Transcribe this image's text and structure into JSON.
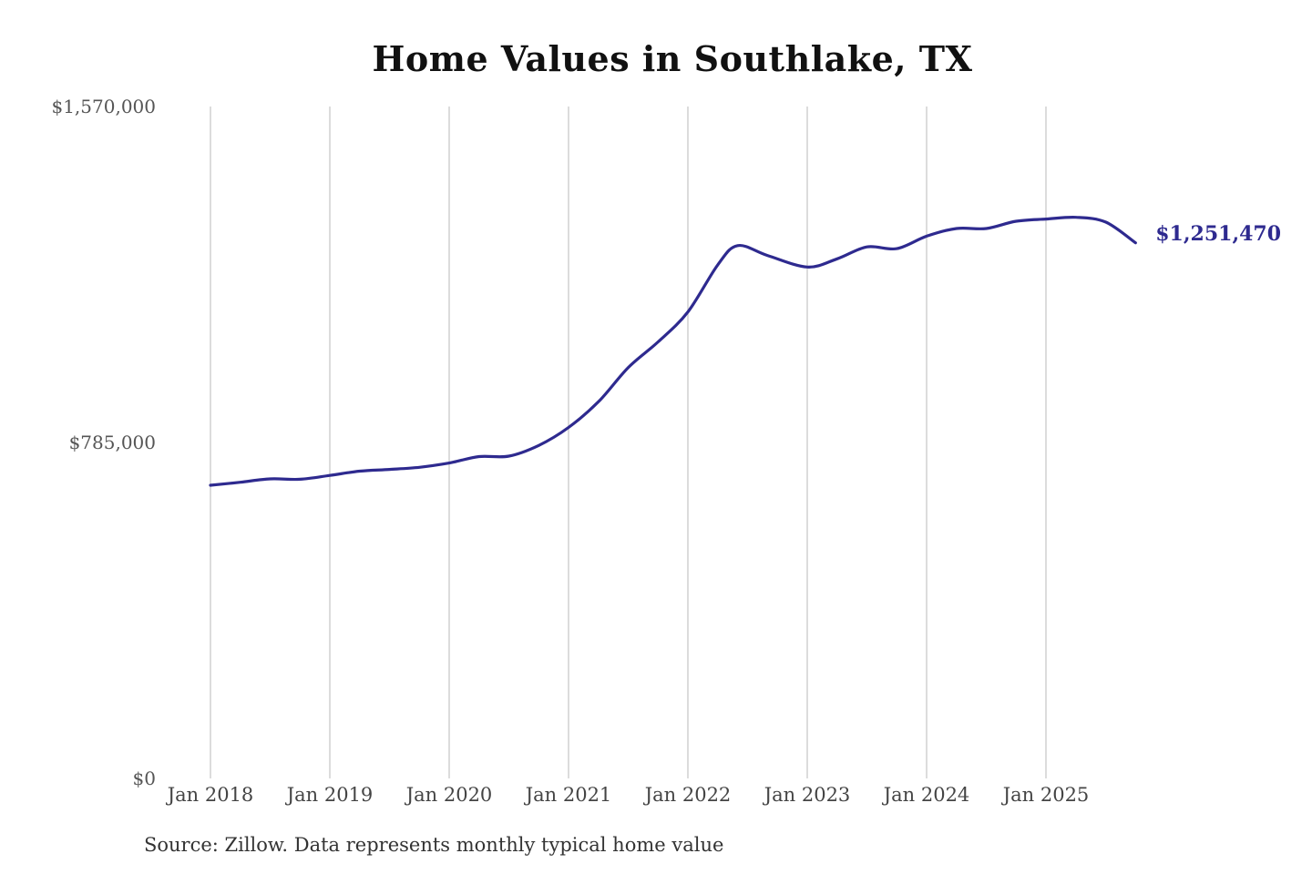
{
  "chart_data": {
    "type": "line",
    "title": "Home Values in Southlake, TX",
    "source": "Source: Zillow. Data represents monthly typical home value",
    "ylim": [
      0,
      1570000
    ],
    "y_ticks": [
      0,
      785000,
      1570000
    ],
    "y_tick_labels": [
      "$0",
      "$785,000",
      "$1,570,000"
    ],
    "x_ticks": [
      "Jan 2018",
      "Jan 2019",
      "Jan 2020",
      "Jan 2021",
      "Jan 2022",
      "Jan 2023",
      "Jan 2024",
      "Jan 2025"
    ],
    "x_range": [
      "2018-01",
      "2025-10"
    ],
    "grid": "vertical",
    "line_color": "#2e2a8f",
    "end_label": "$1,251,470",
    "series": [
      {
        "x": [
          "2018-01",
          "2018-04",
          "2018-07",
          "2018-10",
          "2019-01",
          "2019-04",
          "2019-07",
          "2019-10",
          "2020-01",
          "2020-04",
          "2020-07",
          "2020-10",
          "2021-01",
          "2021-04",
          "2021-07",
          "2021-10",
          "2022-01",
          "2022-04",
          "2022-06",
          "2022-09",
          "2023-01",
          "2023-04",
          "2023-07",
          "2023-10",
          "2024-01",
          "2024-04",
          "2024-07",
          "2024-10",
          "2025-01",
          "2025-04",
          "2025-07",
          "2025-10"
        ],
        "y": [
          685000,
          692000,
          700000,
          699000,
          708000,
          718000,
          722000,
          727000,
          737000,
          752000,
          753000,
          778000,
          820000,
          880000,
          960000,
          1020000,
          1090000,
          1200000,
          1245000,
          1222000,
          1195000,
          1214000,
          1242000,
          1238000,
          1267000,
          1285000,
          1285000,
          1302000,
          1307000,
          1311000,
          1300000,
          1251470
        ]
      }
    ]
  }
}
